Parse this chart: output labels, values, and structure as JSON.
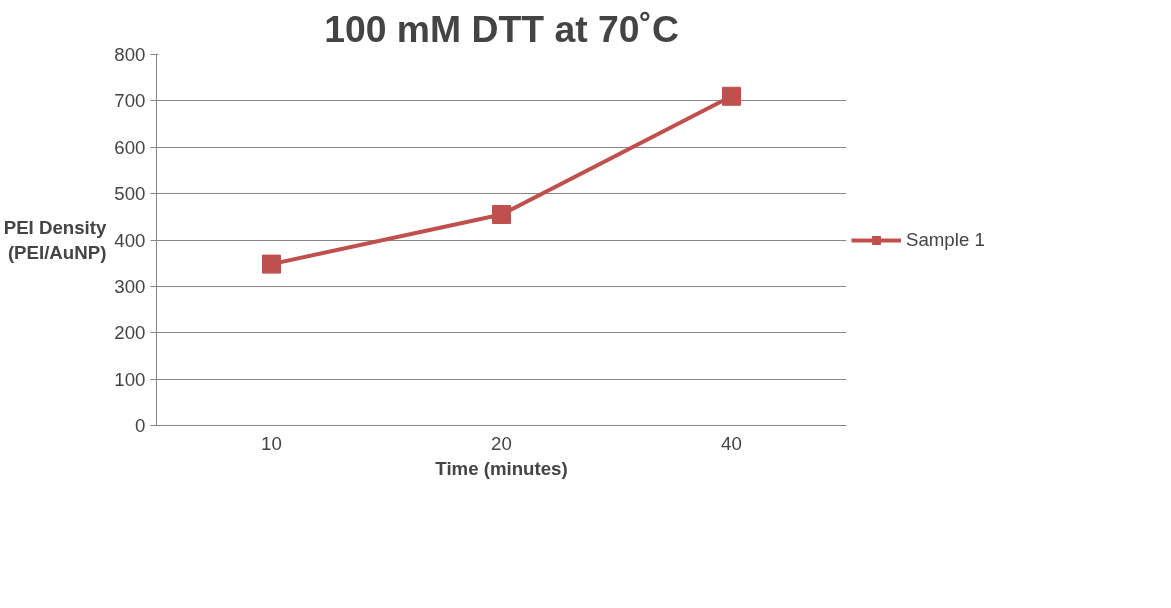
{
  "chart_data": {
    "type": "line",
    "title": "100 mM DTT at 70˚C",
    "xlabel": "Time (minutes)",
    "ylabel": "PEI Density\n(PEI/AuNP)",
    "categories": [
      "10",
      "20",
      "40"
    ],
    "series": [
      {
        "name": "Sample 1",
        "color": "#c0504d",
        "values": [
          348,
          455,
          710
        ]
      }
    ],
    "ylim": [
      0,
      800
    ],
    "yticks": [
      0,
      100,
      200,
      300,
      400,
      500,
      600,
      700,
      800
    ],
    "grid": "y",
    "legend": "right",
    "marker": "square",
    "line_style": "solid"
  }
}
